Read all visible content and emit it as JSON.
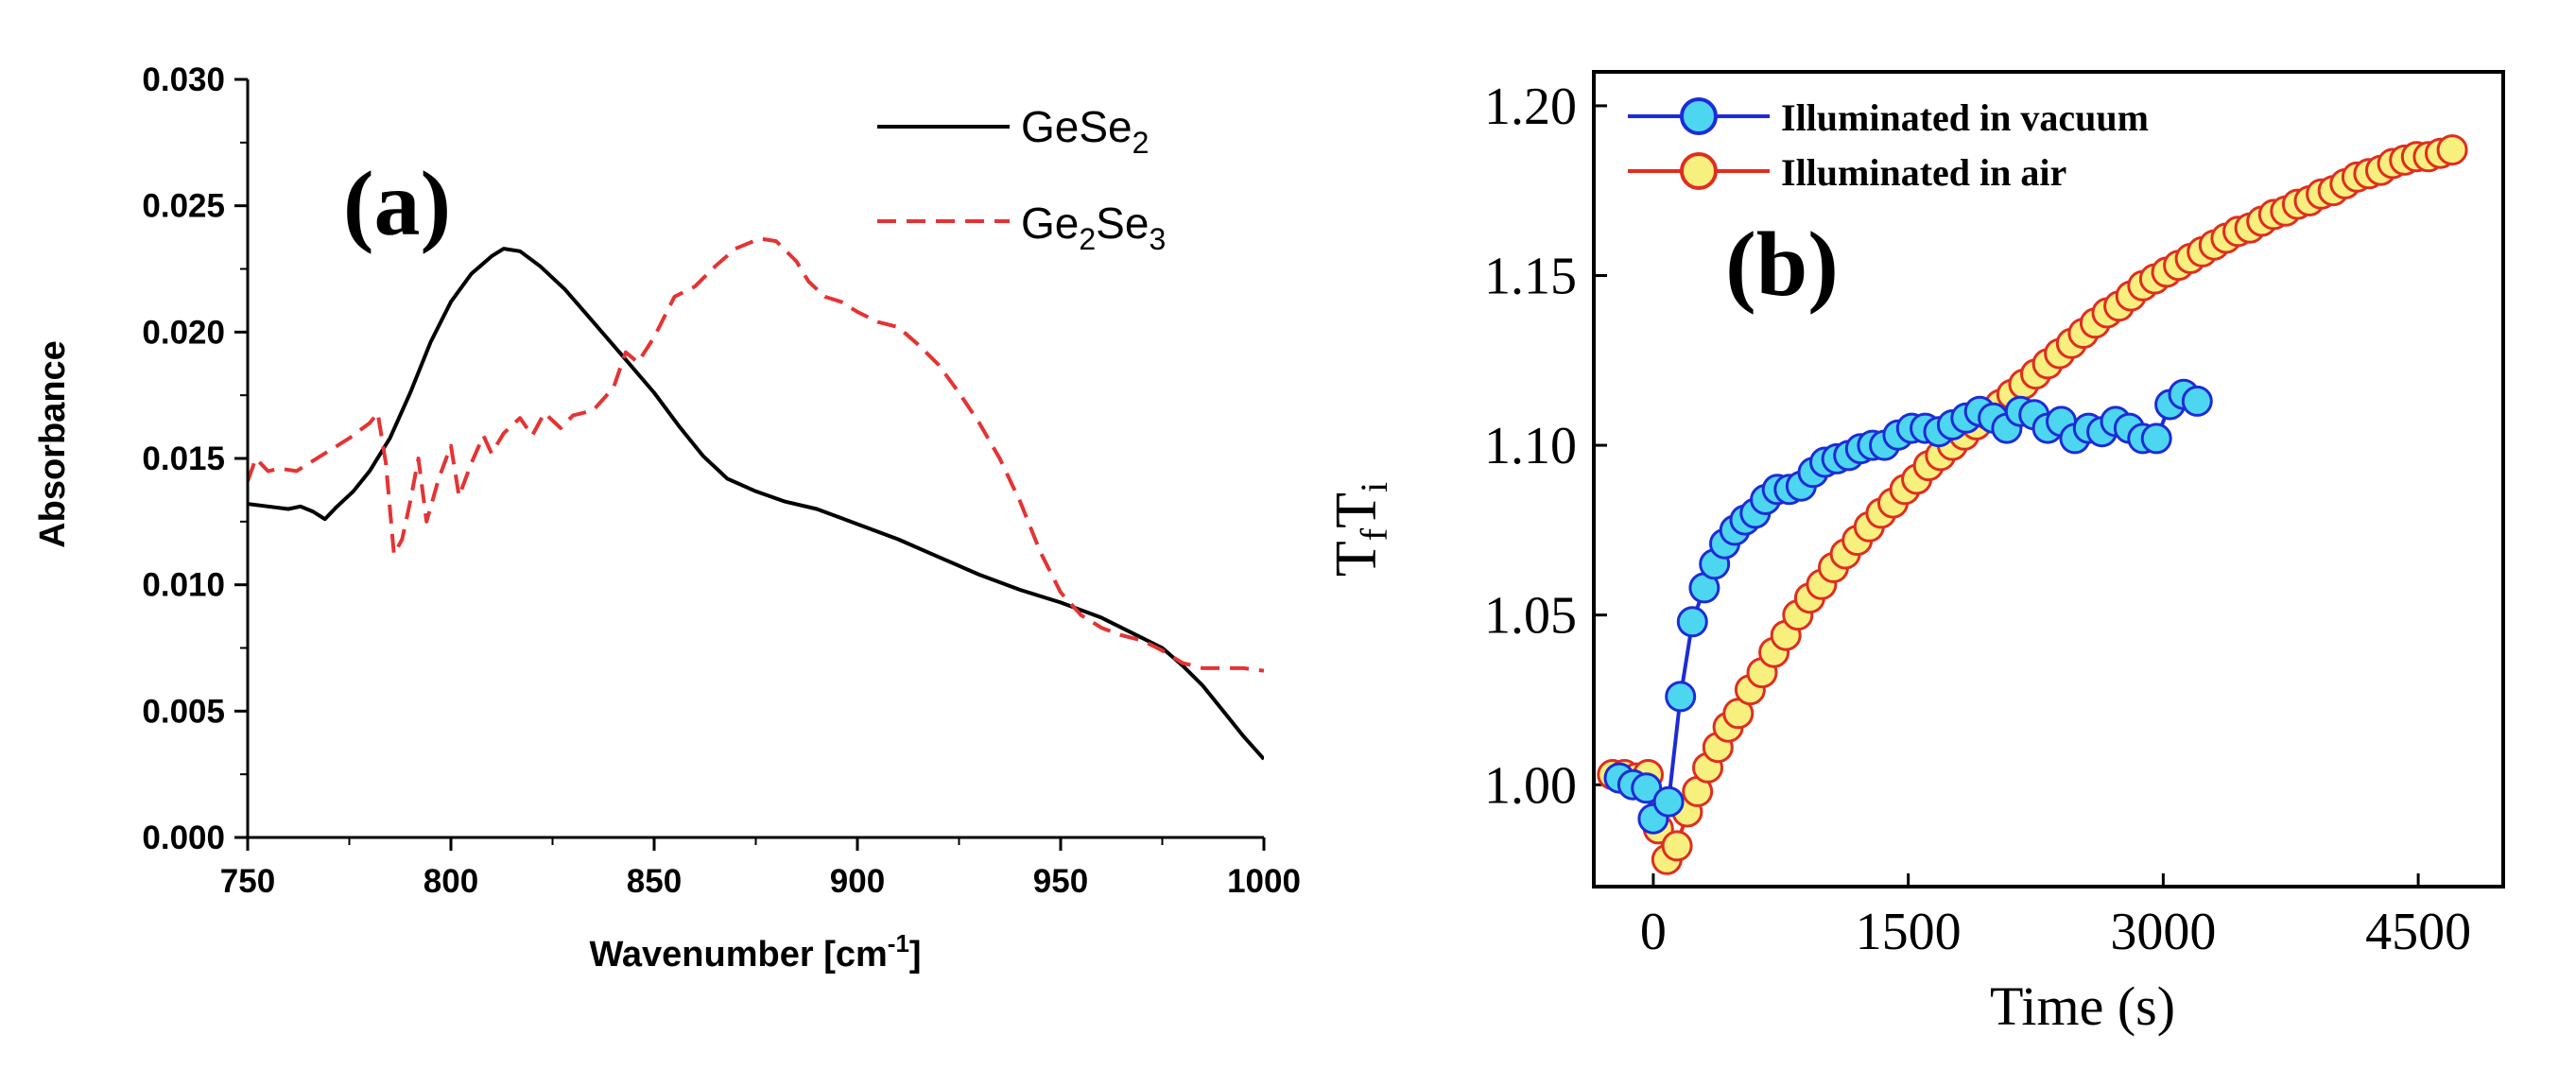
{
  "chart_data": [
    {
      "type": "line",
      "panel_label": "(a)",
      "title": "",
      "xlabel": "Wavenumber [cm",
      "xlabel_sup": "-1",
      "xlabel_tail": "]",
      "ylabel": "Absorbance",
      "xlim": [
        750,
        1000
      ],
      "ylim": [
        0.0,
        0.03
      ],
      "xticks": [
        "750",
        "800",
        "850",
        "900",
        "950",
        "1000"
      ],
      "yticks": [
        "0.000",
        "0.005",
        "0.010",
        "0.015",
        "0.020",
        "0.025",
        "0.030"
      ],
      "legend_position": "top-right",
      "series": [
        {
          "name": "GeSe2",
          "label_main": "GeSe",
          "label_sub1": "2",
          "label_mid": "",
          "label_sub2": "",
          "color": "#000000",
          "dash": "solid",
          "points": [
            [
              750,
              0.0132
            ],
            [
              755,
              0.0131
            ],
            [
              760,
              0.013
            ],
            [
              763,
              0.0131
            ],
            [
              766,
              0.0129
            ],
            [
              769,
              0.0126
            ],
            [
              772,
              0.0131
            ],
            [
              776,
              0.0137
            ],
            [
              780,
              0.0145
            ],
            [
              785,
              0.0158
            ],
            [
              790,
              0.0176
            ],
            [
              795,
              0.0196
            ],
            [
              800,
              0.0212
            ],
            [
              805,
              0.0223
            ],
            [
              810,
              0.023
            ],
            [
              813,
              0.0233
            ],
            [
              817,
              0.0232
            ],
            [
              822,
              0.0226
            ],
            [
              828,
              0.0217
            ],
            [
              835,
              0.0204
            ],
            [
              842,
              0.0191
            ],
            [
              850,
              0.0176
            ],
            [
              856,
              0.0163
            ],
            [
              862,
              0.0151
            ],
            [
              868,
              0.0142
            ],
            [
              875,
              0.0137
            ],
            [
              882,
              0.0133
            ],
            [
              890,
              0.013
            ],
            [
              900,
              0.0124
            ],
            [
              910,
              0.0118
            ],
            [
              920,
              0.0111
            ],
            [
              930,
              0.0104
            ],
            [
              940,
              0.0098
            ],
            [
              950,
              0.0093
            ],
            [
              960,
              0.0087
            ],
            [
              970,
              0.0079
            ],
            [
              975,
              0.0075
            ],
            [
              980,
              0.0068
            ],
            [
              985,
              0.006
            ],
            [
              990,
              0.005
            ],
            [
              995,
              0.004
            ],
            [
              1000,
              0.0031
            ]
          ]
        },
        {
          "name": "Ge2Se3",
          "label_main": "Ge",
          "label_sub1": "2",
          "label_mid": "Se",
          "label_sub2": "3",
          "color": "#e53333",
          "dash": "dashed",
          "points": [
            [
              750,
              0.0141
            ],
            [
              752,
              0.015
            ],
            [
              755,
              0.0145
            ],
            [
              758,
              0.0146
            ],
            [
              762,
              0.0145
            ],
            [
              766,
              0.0149
            ],
            [
              770,
              0.0153
            ],
            [
              775,
              0.0158
            ],
            [
              780,
              0.0164
            ],
            [
              782,
              0.0168
            ],
            [
              784,
              0.0148
            ],
            [
              786,
              0.0112
            ],
            [
              788,
              0.0118
            ],
            [
              790,
              0.0133
            ],
            [
              792,
              0.015
            ],
            [
              794,
              0.0125
            ],
            [
              797,
              0.0142
            ],
            [
              800,
              0.0155
            ],
            [
              802,
              0.0135
            ],
            [
              805,
              0.0148
            ],
            [
              808,
              0.0159
            ],
            [
              810,
              0.0152
            ],
            [
              813,
              0.016
            ],
            [
              817,
              0.0166
            ],
            [
              820,
              0.0159
            ],
            [
              823,
              0.0168
            ],
            [
              827,
              0.0162
            ],
            [
              830,
              0.0167
            ],
            [
              835,
              0.0169
            ],
            [
              840,
              0.0178
            ],
            [
              843,
              0.0192
            ],
            [
              846,
              0.0188
            ],
            [
              850,
              0.0198
            ],
            [
              855,
              0.0214
            ],
            [
              860,
              0.0218
            ],
            [
              865,
              0.0226
            ],
            [
              870,
              0.0233
            ],
            [
              876,
              0.0237
            ],
            [
              880,
              0.0236
            ],
            [
              885,
              0.0228
            ],
            [
              888,
              0.022
            ],
            [
              892,
              0.0214
            ],
            [
              896,
              0.0212
            ],
            [
              900,
              0.0208
            ],
            [
              905,
              0.0204
            ],
            [
              910,
              0.0202
            ],
            [
              915,
              0.0195
            ],
            [
              920,
              0.0187
            ],
            [
              925,
              0.0176
            ],
            [
              930,
              0.0164
            ],
            [
              935,
              0.015
            ],
            [
              940,
              0.0133
            ],
            [
              945,
              0.0113
            ],
            [
              950,
              0.0097
            ],
            [
              955,
              0.0088
            ],
            [
              960,
              0.0083
            ],
            [
              965,
              0.008
            ],
            [
              970,
              0.0078
            ],
            [
              975,
              0.0074
            ],
            [
              980,
              0.0069
            ],
            [
              985,
              0.0067
            ],
            [
              990,
              0.0067
            ],
            [
              995,
              0.0067
            ],
            [
              1000,
              0.0066
            ]
          ]
        }
      ]
    },
    {
      "type": "scatter",
      "panel_label": "(b)",
      "title": "",
      "xlabel": "Time (s)",
      "ylabel": "T",
      "ylabel_sub1": "f",
      "ylabel_mid": "T",
      "ylabel_sub2": "i",
      "xlim": [
        -350,
        5000
      ],
      "ylim": [
        0.97,
        1.21
      ],
      "xticks": [
        0,
        1500,
        3000,
        4500
      ],
      "yticks": [
        "1.00",
        "1.05",
        "1.10",
        "1.15",
        "1.20"
      ],
      "legend_position": "top-left",
      "series": [
        {
          "name": "Illuminated in vacuum",
          "fill": "#4dd6f0",
          "edge": "#1d2bd8",
          "points": [
            [
              -200,
              1.002
            ],
            [
              -120,
              1.0
            ],
            [
              -40,
              0.999
            ],
            [
              0,
              0.99
            ],
            [
              90,
              0.995
            ],
            [
              160,
              1.026
            ],
            [
              230,
              1.048
            ],
            [
              300,
              1.058
            ],
            [
              360,
              1.065
            ],
            [
              420,
              1.071
            ],
            [
              480,
              1.075
            ],
            [
              540,
              1.078
            ],
            [
              600,
              1.08
            ],
            [
              660,
              1.084
            ],
            [
              730,
              1.087
            ],
            [
              800,
              1.087
            ],
            [
              870,
              1.088
            ],
            [
              940,
              1.092
            ],
            [
              1010,
              1.095
            ],
            [
              1080,
              1.096
            ],
            [
              1150,
              1.097
            ],
            [
              1220,
              1.099
            ],
            [
              1290,
              1.1
            ],
            [
              1360,
              1.1
            ],
            [
              1440,
              1.103
            ],
            [
              1520,
              1.105
            ],
            [
              1600,
              1.105
            ],
            [
              1680,
              1.104
            ],
            [
              1760,
              1.106
            ],
            [
              1840,
              1.108
            ],
            [
              1920,
              1.11
            ],
            [
              2000,
              1.108
            ],
            [
              2080,
              1.105
            ],
            [
              2160,
              1.11
            ],
            [
              2240,
              1.109
            ],
            [
              2320,
              1.105
            ],
            [
              2400,
              1.107
            ],
            [
              2480,
              1.102
            ],
            [
              2560,
              1.105
            ],
            [
              2640,
              1.104
            ],
            [
              2720,
              1.107
            ],
            [
              2800,
              1.105
            ],
            [
              2880,
              1.102
            ],
            [
              2960,
              1.102
            ],
            [
              3040,
              1.112
            ],
            [
              3120,
              1.115
            ],
            [
              3200,
              1.113
            ]
          ]
        },
        {
          "name": "Illuminated in air",
          "fill": "#f7ef7e",
          "edge": "#e02d20",
          "points": [
            [
              -240,
              1.003
            ],
            [
              -170,
              1.003
            ],
            [
              -100,
              1.002
            ],
            [
              -30,
              1.003
            ],
            [
              30,
              0.987
            ],
            [
              80,
              0.978
            ],
            [
              140,
              0.982
            ],
            [
              200,
              0.992
            ],
            [
              260,
              0.998
            ],
            [
              320,
              1.005
            ],
            [
              380,
              1.011
            ],
            [
              440,
              1.017
            ],
            [
              500,
              1.021
            ],
            [
              570,
              1.028
            ],
            [
              640,
              1.033
            ],
            [
              710,
              1.039
            ],
            [
              780,
              1.044
            ],
            [
              850,
              1.05
            ],
            [
              920,
              1.055
            ],
            [
              990,
              1.059
            ],
            [
              1060,
              1.064
            ],
            [
              1130,
              1.068
            ],
            [
              1200,
              1.072
            ],
            [
              1270,
              1.076
            ],
            [
              1340,
              1.08
            ],
            [
              1410,
              1.083
            ],
            [
              1480,
              1.087
            ],
            [
              1550,
              1.09
            ],
            [
              1620,
              1.094
            ],
            [
              1690,
              1.097
            ],
            [
              1760,
              1.1
            ],
            [
              1830,
              1.103
            ],
            [
              1900,
              1.106
            ],
            [
              1970,
              1.109
            ],
            [
              2040,
              1.112
            ],
            [
              2110,
              1.115
            ],
            [
              2180,
              1.118
            ],
            [
              2250,
              1.121
            ],
            [
              2320,
              1.124
            ],
            [
              2390,
              1.127
            ],
            [
              2460,
              1.13
            ],
            [
              2530,
              1.133
            ],
            [
              2600,
              1.136
            ],
            [
              2670,
              1.139
            ],
            [
              2740,
              1.141
            ],
            [
              2810,
              1.144
            ],
            [
              2880,
              1.147
            ],
            [
              2950,
              1.149
            ],
            [
              3020,
              1.151
            ],
            [
              3090,
              1.153
            ],
            [
              3160,
              1.155
            ],
            [
              3230,
              1.157
            ],
            [
              3300,
              1.159
            ],
            [
              3370,
              1.161
            ],
            [
              3440,
              1.163
            ],
            [
              3510,
              1.164
            ],
            [
              3580,
              1.166
            ],
            [
              3650,
              1.168
            ],
            [
              3720,
              1.169
            ],
            [
              3790,
              1.171
            ],
            [
              3860,
              1.172
            ],
            [
              3930,
              1.174
            ],
            [
              4000,
              1.175
            ],
            [
              4070,
              1.177
            ],
            [
              4140,
              1.179
            ],
            [
              4210,
              1.18
            ],
            [
              4280,
              1.181
            ],
            [
              4350,
              1.183
            ],
            [
              4420,
              1.184
            ],
            [
              4490,
              1.185
            ],
            [
              4560,
              1.185
            ],
            [
              4630,
              1.186
            ],
            [
              4700,
              1.187
            ]
          ]
        }
      ]
    }
  ]
}
